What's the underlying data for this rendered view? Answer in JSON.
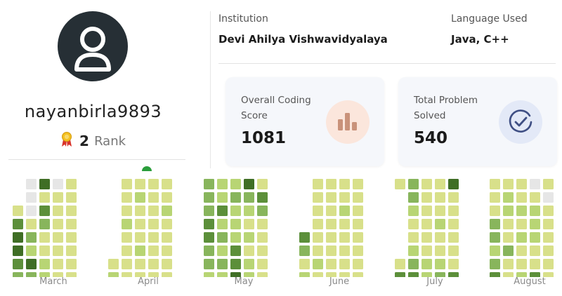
{
  "profile": {
    "username": "nayanbirla9893",
    "rank_number": "2",
    "rank_label": "Rank"
  },
  "institution": {
    "label": "Institution",
    "value": "Devi Ahilya Vishwavidyalaya"
  },
  "language": {
    "label": "Language Used",
    "value": "Java, C++"
  },
  "cards": [
    {
      "title": "Overall Coding Score",
      "value": "1081",
      "icon": "bar-chart-icon",
      "icon_bg": "#fbe6dc",
      "icon_color": "#c9927a"
    },
    {
      "title": "Total Problem Solved",
      "value": "540",
      "icon": "check-circle-icon",
      "icon_bg": "#e3e9f7",
      "icon_color": "#3f4f84"
    }
  ],
  "heatmap": {
    "months": [
      "March",
      "April",
      "May",
      "June",
      "July",
      "August"
    ],
    "level_colors": [
      "#e6e6e6",
      "#d8e08a",
      "#b8d574",
      "#88b55c",
      "#5c8f3a",
      "#3f6e25"
    ],
    "grids": [
      [
        [
          0,
          5,
          0,
          1
        ],
        [
          0,
          1,
          1,
          1
        ],
        [
          1,
          0,
          4,
          1,
          1
        ],
        [
          4,
          1,
          3,
          1,
          1
        ],
        [
          5,
          3,
          1,
          1,
          1
        ],
        [
          5,
          2,
          1,
          1,
          1
        ],
        [
          4,
          5,
          2,
          1,
          1
        ],
        [
          3,
          3,
          2,
          1,
          1
        ]
      ],
      [
        [
          1,
          1,
          1,
          1
        ],
        [
          1,
          2,
          1,
          1
        ],
        [
          1,
          1,
          1,
          2
        ],
        [
          2,
          1,
          1,
          1
        ],
        [
          1,
          1,
          1,
          1
        ],
        [
          1,
          2,
          1,
          1
        ],
        [
          1,
          1,
          1,
          1,
          1
        ],
        [
          2,
          1,
          1,
          1,
          1
        ]
      ],
      [
        [
          3,
          2,
          2,
          5,
          1
        ],
        [
          3,
          2,
          3,
          3,
          4
        ],
        [
          3,
          4,
          2,
          2,
          3
        ],
        [
          4,
          2,
          2,
          1,
          1
        ],
        [
          4,
          3,
          2,
          2,
          1
        ],
        [
          3,
          2,
          4,
          1,
          1
        ],
        [
          3,
          3,
          4,
          2,
          1
        ],
        [
          2,
          2,
          5,
          2,
          1
        ]
      ],
      [
        [
          1,
          1,
          1,
          1
        ],
        [
          1,
          1,
          1,
          1
        ],
        [
          1,
          1,
          2,
          1
        ],
        [
          1,
          1,
          1,
          1
        ],
        [
          4,
          1,
          1,
          1,
          1
        ],
        [
          3,
          1,
          1,
          1,
          1
        ],
        [
          1,
          2,
          1,
          1,
          1
        ],
        [
          2,
          1,
          1,
          1,
          1
        ]
      ],
      [
        [
          1,
          3,
          1,
          1,
          5
        ],
        [
          3,
          1,
          1,
          1
        ],
        [
          2,
          1,
          1,
          1
        ],
        [
          1,
          1,
          2,
          1
        ],
        [
          1,
          1,
          1,
          1
        ],
        [
          2,
          1,
          1,
          1
        ],
        [
          1,
          3,
          2,
          2,
          1
        ],
        [
          4,
          4,
          2,
          3,
          4
        ]
      ],
      [
        [
          1,
          1,
          1,
          0,
          1
        ],
        [
          1,
          2,
          1,
          1,
          0
        ],
        [
          1,
          2,
          2,
          2,
          1
        ],
        [
          3,
          1,
          1,
          2,
          1
        ],
        [
          3,
          1,
          2,
          2,
          1
        ],
        [
          2,
          3,
          1,
          1,
          1
        ],
        [
          3,
          1,
          1,
          1,
          1
        ],
        [
          4,
          1,
          2,
          4,
          1
        ]
      ]
    ]
  }
}
